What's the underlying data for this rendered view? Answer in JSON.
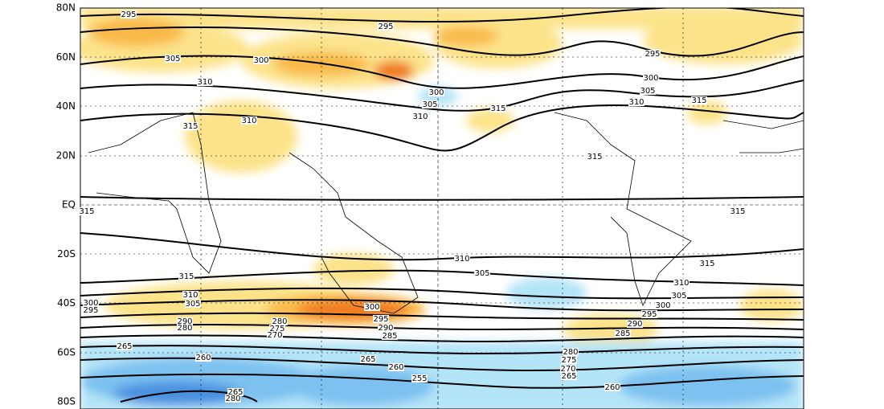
{
  "map": {
    "lat_labels": [
      "80N",
      "60N",
      "40N",
      "20N",
      "EQ",
      "20S",
      "40S",
      "60S",
      "80S"
    ],
    "contour_labels": [
      "295",
      "295",
      "305",
      "300",
      "310",
      "300",
      "305",
      "310",
      "315",
      "310",
      "315",
      "295",
      "300",
      "305",
      "310",
      "315",
      "315",
      "315",
      "315",
      "310",
      "305",
      "315",
      "315",
      "310",
      "305",
      "300",
      "295",
      "300",
      "295",
      "290",
      "285",
      "290",
      "280",
      "280",
      "275",
      "270",
      "310",
      "305",
      "300",
      "295",
      "290",
      "285",
      "265",
      "260",
      "265",
      "260",
      "255",
      "280",
      "275",
      "270",
      "265",
      "260",
      "265",
      "280"
    ]
  }
}
